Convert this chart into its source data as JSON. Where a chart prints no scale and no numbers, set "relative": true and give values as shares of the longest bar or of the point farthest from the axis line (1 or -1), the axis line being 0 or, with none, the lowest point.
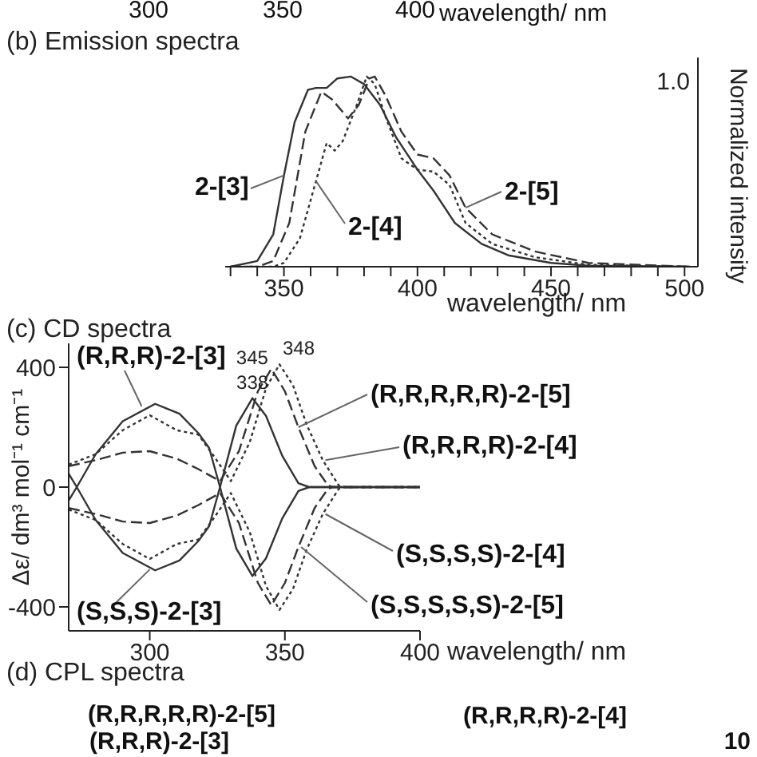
{
  "chart_data": [
    {
      "type": "other",
      "annotations": [
        "300",
        "350",
        "400",
        "wavelength/ nm"
      ]
    },
    {
      "type": "line",
      "title": "(b) Emission spectra",
      "xlabel": "wavelength/ nm",
      "ylabel": "Normalized intensity",
      "xlim": [
        328,
        505
      ],
      "relative": true,
      "xticks": [
        {
          "value": 330,
          "label": null
        },
        {
          "value": 340,
          "label": null
        },
        350,
        {
          "value": 360,
          "label": null
        },
        {
          "value": 370,
          "label": null
        },
        {
          "value": 380,
          "label": null
        },
        {
          "value": 390,
          "label": null
        },
        400,
        {
          "value": 410,
          "label": null
        },
        {
          "value": 420,
          "label": null
        },
        {
          "value": 430,
          "label": null
        },
        {
          "value": 440,
          "label": null
        },
        450,
        {
          "value": 460,
          "label": null
        },
        {
          "value": 470,
          "label": null
        },
        {
          "value": 480,
          "label": null
        },
        {
          "value": 490,
          "label": null
        },
        500
      ],
      "marker": "none",
      "series": [
        {
          "color": "#333333",
          "line_style": "solid",
          "x": [
            330,
            340,
            346,
            350,
            354,
            359,
            362,
            366,
            370,
            375,
            380,
            386,
            392,
            400,
            406,
            414,
            424,
            434,
            450,
            464,
            502
          ],
          "values": [
            0,
            0.03,
            0.17,
            0.48,
            0.76,
            0.93,
            0.94,
            0.94,
            0.99,
            1.0,
            0.96,
            0.85,
            0.68,
            0.51,
            0.4,
            0.23,
            0.12,
            0.06,
            0.02,
            0.005,
            0
          ]
        },
        {
          "color": "#333333",
          "line_style": "dotted",
          "x": [
            330,
            346,
            350,
            356,
            362,
            366,
            369,
            372,
            377,
            381,
            384,
            388,
            394,
            400,
            406,
            412,
            418,
            428,
            444,
            464,
            502
          ],
          "values": [
            0,
            0,
            0.02,
            0.15,
            0.45,
            0.65,
            0.61,
            0.66,
            0.84,
            1.0,
            0.96,
            0.79,
            0.57,
            0.51,
            0.5,
            0.43,
            0.23,
            0.12,
            0.05,
            0.01,
            0
          ]
        },
        {
          "color": "#333333",
          "line_style": "dashed",
          "x": [
            330,
            340,
            346,
            352,
            358,
            364,
            368,
            374,
            378,
            382,
            384,
            388,
            394,
            400,
            406,
            412,
            418,
            428,
            444,
            464,
            502
          ],
          "values": [
            0,
            0,
            0.03,
            0.23,
            0.71,
            0.92,
            0.88,
            0.78,
            0.85,
            0.99,
            1.0,
            0.9,
            0.71,
            0.59,
            0.57,
            0.48,
            0.31,
            0.17,
            0.08,
            0.02,
            0
          ]
        }
      ],
      "annotations": [
        {
          "text": "2-[3]",
          "x": 350,
          "y": 0.48
        },
        {
          "text": "2-[4]",
          "x": 362,
          "y": 0.45
        },
        {
          "text": "2-[5]",
          "x": 418,
          "y": 0.31
        },
        "1.0"
      ]
    },
    {
      "type": "line",
      "title": "(c) CD spectra",
      "xlabel": "wavelength/ nm",
      "ylabel": "Δε/ dm³ mol⁻¹ cm⁻¹",
      "xlim": [
        270,
        400
      ],
      "ylim": [
        -480,
        480
      ],
      "xticks": [
        300,
        350,
        400
      ],
      "yticks": [
        -400,
        0,
        400
      ],
      "marker": "none",
      "series": [
        {
          "color": "#333333",
          "line_style": "solid",
          "x": [
            270,
            273,
            280,
            290,
            302,
            311,
            318,
            322,
            326,
            332,
            338,
            343,
            349,
            355,
            359,
            400
          ],
          "values": [
            -45,
            0,
            110,
            220,
            278,
            245,
            180,
            130,
            0,
            -205,
            -297,
            -238,
            -105,
            -13,
            0,
            0
          ]
        },
        {
          "color": "#333333",
          "line_style": "solid",
          "x": [
            270,
            273,
            280,
            290,
            302,
            311,
            318,
            322,
            326,
            332,
            338,
            343,
            349,
            355,
            359,
            400
          ],
          "values": [
            45,
            0,
            -110,
            -220,
            -278,
            -245,
            -180,
            -130,
            0,
            205,
            297,
            238,
            105,
            13,
            0,
            0
          ]
        },
        {
          "color": "#333333",
          "line_style": "dotted",
          "x": [
            270,
            280,
            290,
            300,
            310,
            318,
            324,
            330,
            337,
            343,
            348,
            353,
            358,
            364,
            370,
            372,
            400
          ],
          "values": [
            75,
            110,
            190,
            240,
            190,
            175,
            100,
            20,
            150,
            330,
            410,
            340,
            210,
            90,
            5,
            0,
            0
          ]
        },
        {
          "color": "#333333",
          "line_style": "dotted",
          "x": [
            270,
            280,
            290,
            300,
            310,
            318,
            324,
            330,
            337,
            343,
            348,
            353,
            358,
            364,
            370,
            372,
            400
          ],
          "values": [
            -75,
            -110,
            -190,
            -240,
            -190,
            -175,
            -100,
            -20,
            -150,
            -330,
            -410,
            -340,
            -210,
            -90,
            -5,
            0,
            0
          ]
        },
        {
          "color": "#333333",
          "line_style": "dashed",
          "x": [
            270,
            280,
            290,
            300,
            310,
            318,
            326,
            333,
            340,
            345,
            350,
            355,
            361,
            366,
            368,
            400
          ],
          "values": [
            70,
            90,
            115,
            120,
            95,
            60,
            20,
            120,
            320,
            395,
            320,
            200,
            70,
            5,
            0,
            0
          ]
        },
        {
          "color": "#333333",
          "line_style": "dashed",
          "x": [
            270,
            280,
            290,
            300,
            310,
            318,
            326,
            333,
            340,
            345,
            350,
            355,
            361,
            366,
            368,
            400
          ],
          "values": [
            -70,
            -90,
            -115,
            -120,
            -95,
            -60,
            -20,
            -120,
            -320,
            -395,
            -320,
            -200,
            -70,
            -5,
            0,
            0
          ]
        }
      ],
      "annotations": [
        {
          "text": "(R,R,R)-2-[3]",
          "x": 297,
          "y": 270
        },
        {
          "text": "(S,S,S)-2-[3]",
          "x": 300,
          "y": -275
        },
        {
          "text": "(R,R,R,R,R)-2-[5]",
          "x": 355,
          "y": 200
        },
        {
          "text": "(R,R,R,R)-2-[4]",
          "x": 365,
          "y": 90
        },
        {
          "text": "(S,S,S,S)-2-[4]",
          "x": 365,
          "y": -90
        },
        {
          "text": "(S,S,S,S,S)-2-[5]",
          "x": 356,
          "y": -200
        },
        {
          "text": "338",
          "x": 338,
          "y": 297
        },
        {
          "text": "345",
          "x": 345,
          "y": 395
        },
        {
          "text": "348",
          "x": 348,
          "y": 410
        }
      ]
    },
    {
      "type": "other",
      "title": "(d) CPL spectra",
      "annotations": [
        "(R,R,R,R,R)-2-[5]",
        "(R,R,R,R)-2-[4]",
        "(R,R,R)-2-[3]",
        "10"
      ]
    }
  ]
}
